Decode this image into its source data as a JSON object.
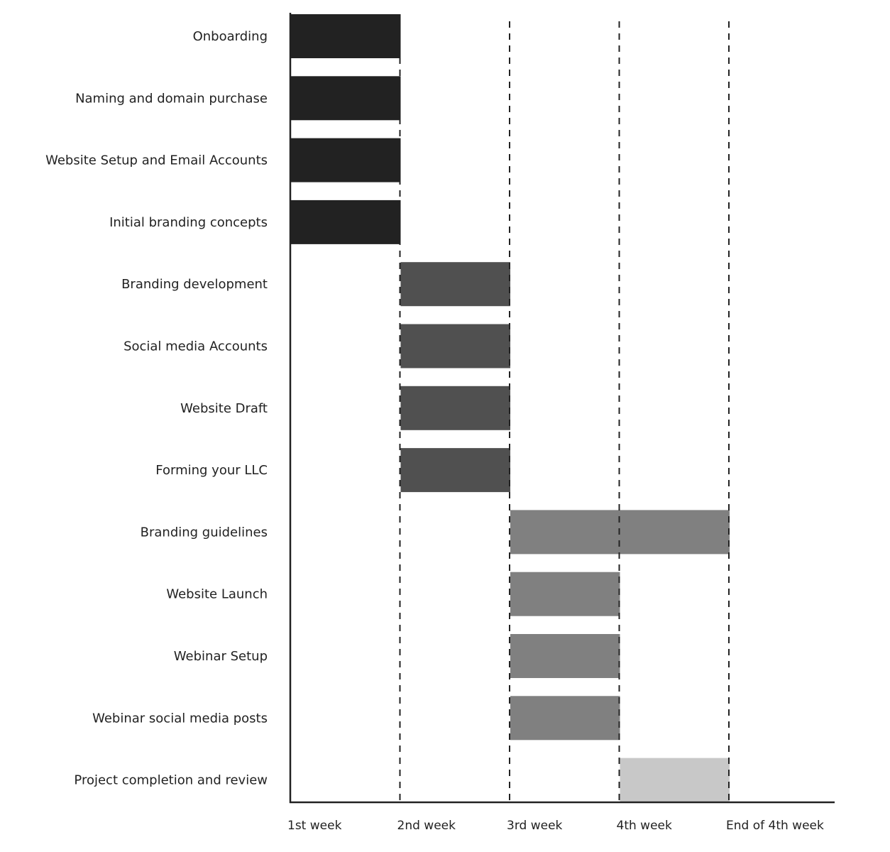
{
  "chart_data": {
    "type": "gantt",
    "title": "",
    "xlabel": "",
    "ylabel": "",
    "x_ticks": [
      "1st week",
      "2nd week",
      "3rd week",
      "4th week",
      "End of 4th week"
    ],
    "xlim": [
      0,
      4
    ],
    "grid": "dashed vertical lines at weeks 1-4",
    "colors": {
      "phase1": "#222222",
      "phase2": "#505050",
      "phase3": "#808080",
      "phase4": "#c8c8c8",
      "axis": "#222222"
    },
    "tasks": [
      {
        "name": "Onboarding",
        "start": 0,
        "end": 1,
        "phase": "phase1"
      },
      {
        "name": "Naming and domain purchase",
        "start": 0,
        "end": 1,
        "phase": "phase1"
      },
      {
        "name": "Website Setup and Email Accounts",
        "start": 0,
        "end": 1,
        "phase": "phase1"
      },
      {
        "name": "Initial branding concepts",
        "start": 0,
        "end": 1,
        "phase": "phase1"
      },
      {
        "name": "Branding development",
        "start": 1,
        "end": 2,
        "phase": "phase2"
      },
      {
        "name": "Social media Accounts",
        "start": 1,
        "end": 2,
        "phase": "phase2"
      },
      {
        "name": "Website Draft",
        "start": 1,
        "end": 2,
        "phase": "phase2"
      },
      {
        "name": "Forming your LLC",
        "start": 1,
        "end": 2,
        "phase": "phase2"
      },
      {
        "name": "Branding guidelines",
        "start": 2,
        "end": 4,
        "phase": "phase3"
      },
      {
        "name": "Website Launch",
        "start": 2,
        "end": 3,
        "phase": "phase3"
      },
      {
        "name": "Webinar Setup",
        "start": 2,
        "end": 3,
        "phase": "phase3"
      },
      {
        "name": "Webinar social media posts",
        "start": 2,
        "end": 3,
        "phase": "phase3"
      },
      {
        "name": "Project completion and review",
        "start": 3,
        "end": 4,
        "phase": "phase4"
      }
    ]
  }
}
